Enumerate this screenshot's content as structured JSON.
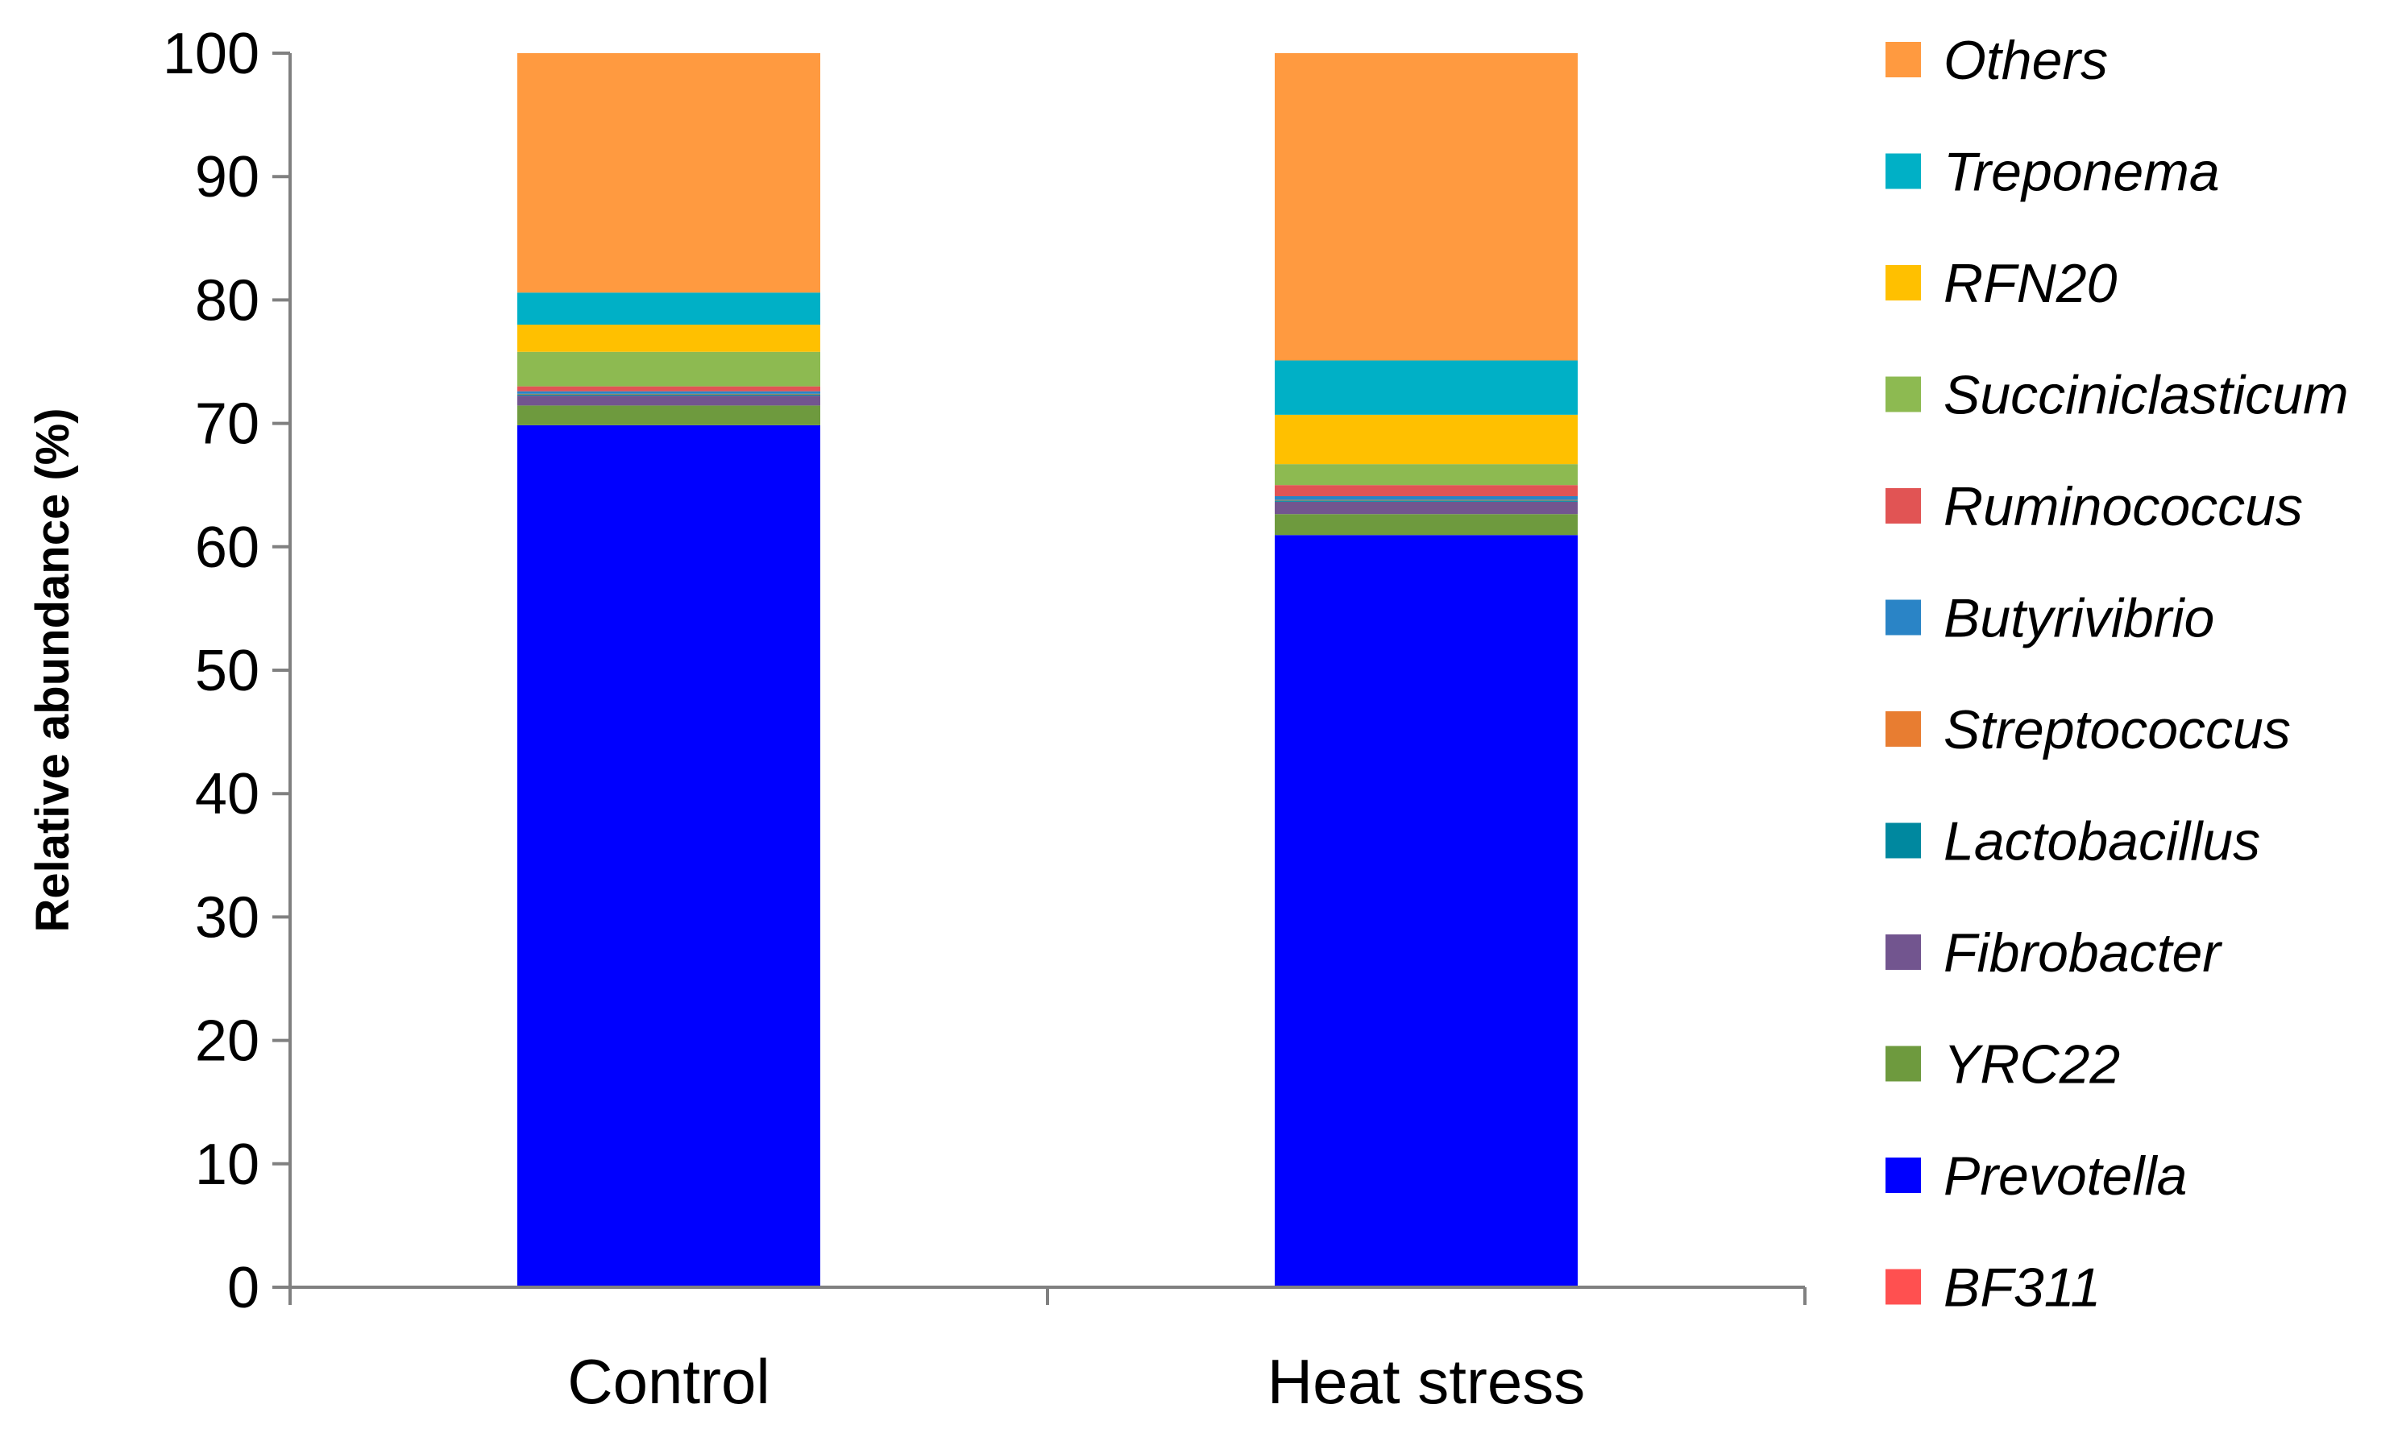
{
  "chart_data": {
    "type": "bar",
    "stacked": true,
    "categories": [
      "Control",
      "Heat stress"
    ],
    "ylabel": "Relative abundance (%)",
    "xlabel": "",
    "ylim": [
      0,
      100
    ],
    "yticks": [
      0,
      10,
      20,
      30,
      40,
      50,
      60,
      70,
      80,
      90,
      100
    ],
    "grid": false,
    "legend": "right",
    "series": [
      {
        "name": "BF311",
        "color": "#FF5050",
        "values": [
          0.05,
          0.05
        ]
      },
      {
        "name": "Prevotella",
        "color": "#0000FF",
        "values": [
          69.8,
          60.9
        ]
      },
      {
        "name": "YRC22",
        "color": "#6E9A3E",
        "values": [
          1.6,
          1.7
        ]
      },
      {
        "name": "Fibrobacter",
        "color": "#72558F",
        "values": [
          0.8,
          1.0
        ]
      },
      {
        "name": "Lactobacillus",
        "color": "#00889F",
        "values": [
          0.1,
          0.1
        ]
      },
      {
        "name": "Streptococcus",
        "color": "#E87D31",
        "values": [
          0.05,
          0.05
        ]
      },
      {
        "name": "Butyrivibrio",
        "color": "#2A84C6",
        "values": [
          0.2,
          0.3
        ]
      },
      {
        "name": "Ruminococcus",
        "color": "#E15454",
        "values": [
          0.4,
          0.9
        ]
      },
      {
        "name": "Succiniclasticum",
        "color": "#8DBA51",
        "values": [
          2.8,
          1.7
        ]
      },
      {
        "name": "RFN20",
        "color": "#FFC000",
        "values": [
          2.2,
          4.0
        ]
      },
      {
        "name": "Treponema",
        "color": "#00B0C6",
        "values": [
          2.6,
          4.4
        ]
      },
      {
        "name": "Others",
        "color": "#FF9A40",
        "values": [
          19.4,
          24.9
        ]
      }
    ]
  }
}
